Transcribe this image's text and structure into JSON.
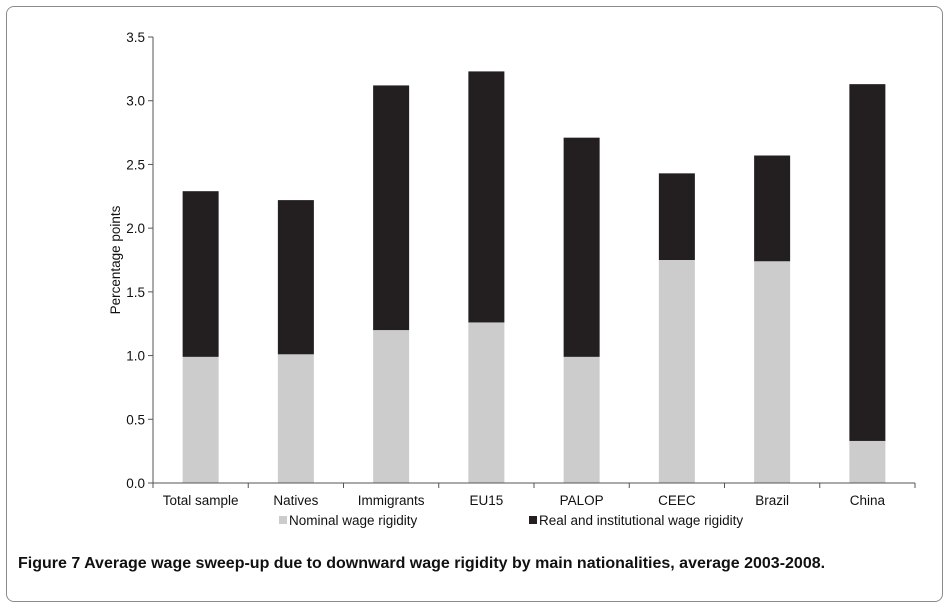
{
  "caption": {
    "prefix": "Figure 7",
    "text": "Average wage sweep-up due to downward wage rigidity by main nationalities, average 2003-2008."
  },
  "chart_data": {
    "type": "bar",
    "stacked": true,
    "categories": [
      "Total sample",
      "Natives",
      "Immigrants",
      "EU15",
      "PALOP",
      "CEEC",
      "Brazil",
      "China"
    ],
    "series": [
      {
        "name": "Nominal wage rigidity",
        "color": "#cccccc",
        "values": [
          0.99,
          1.01,
          1.2,
          1.26,
          0.99,
          1.75,
          1.74,
          0.33
        ]
      },
      {
        "name": "Real and institutional wage rigidity",
        "color": "#231f20",
        "values": [
          1.3,
          1.21,
          1.92,
          1.97,
          1.72,
          0.68,
          0.83,
          2.8
        ]
      }
    ],
    "ylabel": "Percentage points",
    "ylim": [
      0,
      3.5
    ],
    "yticks": [
      "0.0",
      "0.5",
      "1.0",
      "1.5",
      "2.0",
      "2.5",
      "3.0",
      "3.5"
    ],
    "grid": false,
    "legend_position": "bottom"
  }
}
